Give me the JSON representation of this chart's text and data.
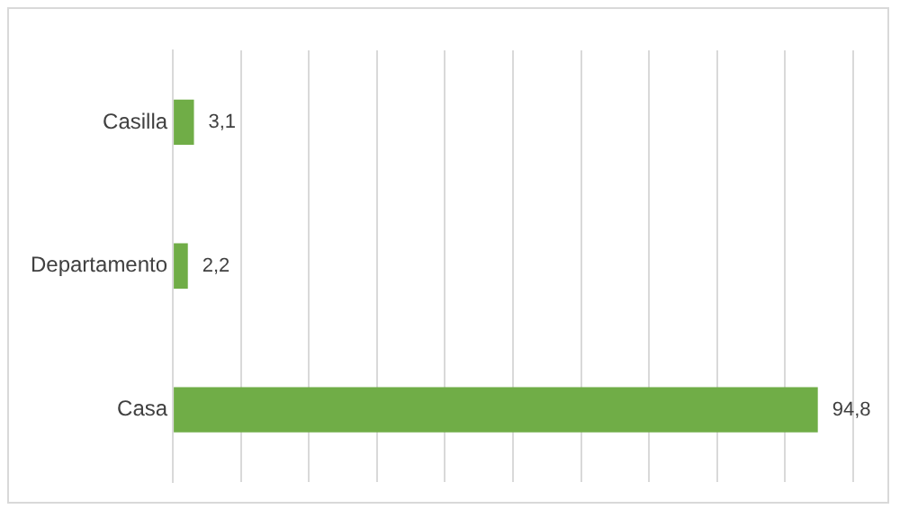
{
  "chart_data": {
    "type": "bar",
    "orientation": "horizontal",
    "categories": [
      "Casilla",
      "Departamento",
      "Casa"
    ],
    "values": [
      3.1,
      2.2,
      94.8
    ],
    "color": "#70ad47",
    "value_labels": [
      "3,1",
      "2,2",
      "94,8"
    ],
    "xlim": [
      0,
      100
    ],
    "xticks": [
      {
        "value": 0,
        "label": null
      },
      {
        "value": 10,
        "label": null
      },
      {
        "value": 20,
        "label": null
      },
      {
        "value": 30,
        "label": null
      },
      {
        "value": 40,
        "label": null
      },
      {
        "value": 50,
        "label": null
      },
      {
        "value": 60,
        "label": null
      },
      {
        "value": 70,
        "label": null
      },
      {
        "value": 80,
        "label": null
      },
      {
        "value": 90,
        "label": null
      },
      {
        "value": 100,
        "label": null
      }
    ],
    "grid": "x",
    "tick_labels": "y",
    "legend": false
  }
}
